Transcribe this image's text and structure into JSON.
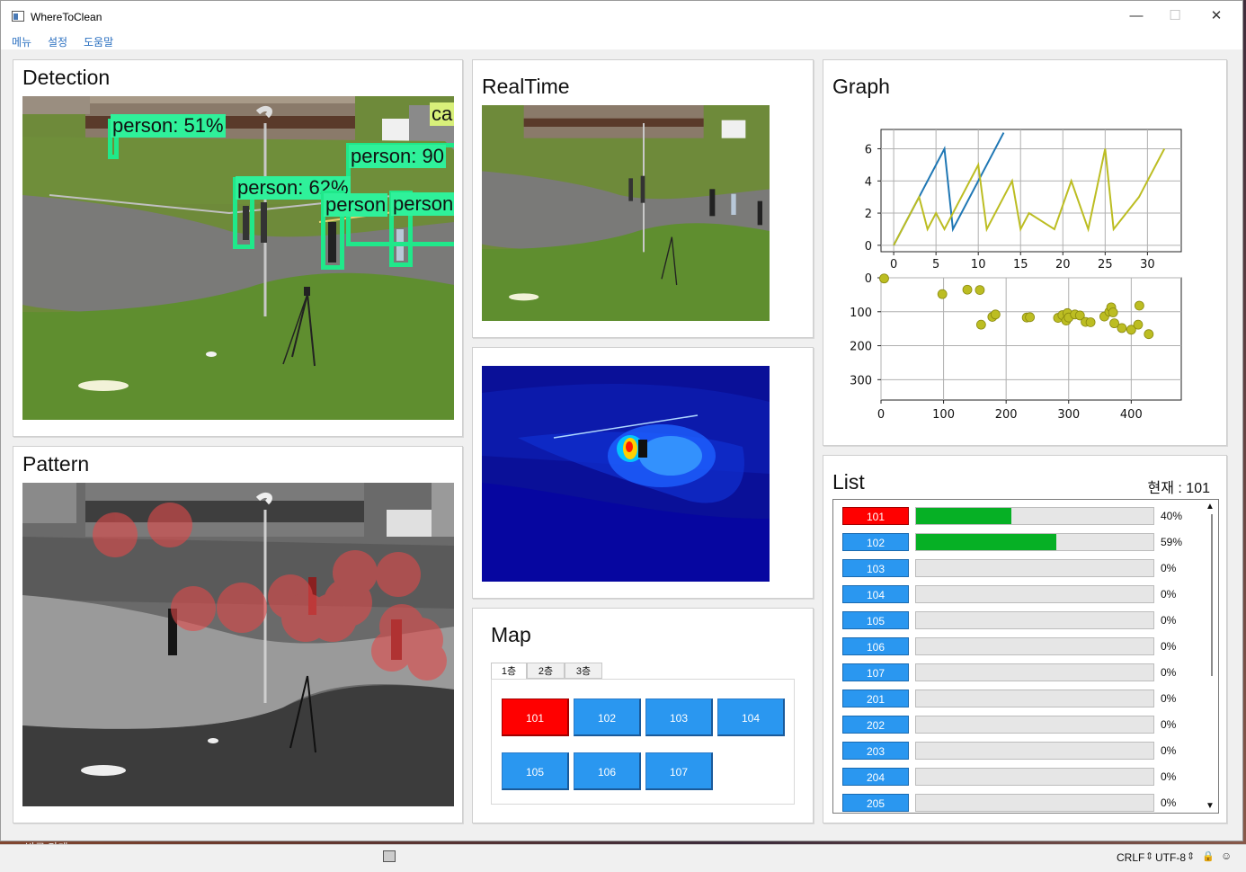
{
  "window": {
    "title": "WhereToClean",
    "minimize": "—",
    "maximize": "☐",
    "close": "✕"
  },
  "menu": [
    "메뉴",
    "설정",
    "도움말"
  ],
  "detection": {
    "title": "Detection",
    "labels": [
      "person: 51%",
      "person: 90",
      "person: 62%",
      "person",
      "person",
      "ca"
    ]
  },
  "pattern": {
    "title": "Pattern"
  },
  "realtime": {
    "title": "RealTime"
  },
  "graph": {
    "title": "Graph",
    "top_xticks": [
      "0",
      "5",
      "10",
      "15",
      "20",
      "25",
      "30"
    ],
    "top_yticks": [
      "0",
      "2",
      "4",
      "6"
    ],
    "bottom_xticks": [
      "0",
      "100",
      "200",
      "300",
      "400"
    ],
    "bottom_yticks": [
      "0",
      "100",
      "200",
      "300"
    ]
  },
  "chart_data": [
    {
      "type": "line",
      "xlim": [
        -1.5,
        34
      ],
      "ylim": [
        -0.4,
        7.2
      ],
      "series": [
        {
          "color": "#1f77b4",
          "x": [
            0,
            3,
            6,
            7,
            13
          ],
          "y": [
            0,
            3,
            6,
            1,
            7
          ]
        },
        {
          "color": "#bcbd22",
          "x": [
            0,
            3,
            4,
            5,
            6,
            7,
            10,
            11,
            14,
            15,
            16,
            19,
            21,
            23,
            25,
            26,
            29,
            32
          ],
          "y": [
            0,
            3,
            1,
            2,
            1,
            2,
            5,
            1,
            4,
            1,
            2,
            1,
            4,
            1,
            6,
            1,
            3,
            6
          ]
        }
      ]
    },
    {
      "type": "scatter",
      "xlim": [
        0,
        480
      ],
      "ylim": [
        360,
        0
      ],
      "inverted_y": true,
      "series": [
        {
          "color": "#bcbd22",
          "points": [
            [
              5,
              2
            ],
            [
              98,
              48
            ],
            [
              138,
              35
            ],
            [
              158,
              36
            ],
            [
              160,
              138
            ],
            [
              178,
              115
            ],
            [
              183,
              108
            ],
            [
              233,
              117
            ],
            [
              238,
              116
            ],
            [
              283,
              118
            ],
            [
              290,
              110
            ],
            [
              296,
              126
            ],
            [
              298,
              104
            ],
            [
              300,
              117
            ],
            [
              310,
              108
            ],
            [
              318,
              111
            ],
            [
              327,
              130
            ],
            [
              335,
              131
            ],
            [
              357,
              114
            ],
            [
              365,
              100
            ],
            [
              368,
              87
            ],
            [
              371,
              102
            ],
            [
              373,
              134
            ],
            [
              385,
              148
            ],
            [
              400,
              153
            ],
            [
              411,
              138
            ],
            [
              413,
              82
            ],
            [
              428,
              166
            ]
          ]
        }
      ]
    }
  ],
  "map": {
    "title": "Map",
    "tabs": [
      "1층",
      "2층",
      "3층"
    ],
    "rooms": [
      "101",
      "102",
      "103",
      "104",
      "105",
      "106",
      "107"
    ]
  },
  "list": {
    "title": "List",
    "current_label": "현재 : 101",
    "items": [
      {
        "room": "101",
        "progress": 40,
        "pct": "40%",
        "red": true
      },
      {
        "room": "102",
        "progress": 59,
        "pct": "59%"
      },
      {
        "room": "103",
        "progress": 0,
        "pct": "0%"
      },
      {
        "room": "104",
        "progress": 0,
        "pct": "0%"
      },
      {
        "room": "105",
        "progress": 0,
        "pct": "0%"
      },
      {
        "room": "106",
        "progress": 0,
        "pct": "0%"
      },
      {
        "room": "107",
        "progress": 0,
        "pct": "0%"
      },
      {
        "room": "201",
        "progress": 0,
        "pct": "0%"
      },
      {
        "room": "202",
        "progress": 0,
        "pct": "0%"
      },
      {
        "room": "203",
        "progress": 0,
        "pct": "0%"
      },
      {
        "room": "204",
        "progress": 0,
        "pct": "0%"
      },
      {
        "room": "205",
        "progress": 0,
        "pct": "0%"
      }
    ]
  },
  "statusbar": {
    "line_ending": "CRLF",
    "encoding": "UTF-8"
  },
  "desktop": {
    "text": "바로 가게"
  }
}
